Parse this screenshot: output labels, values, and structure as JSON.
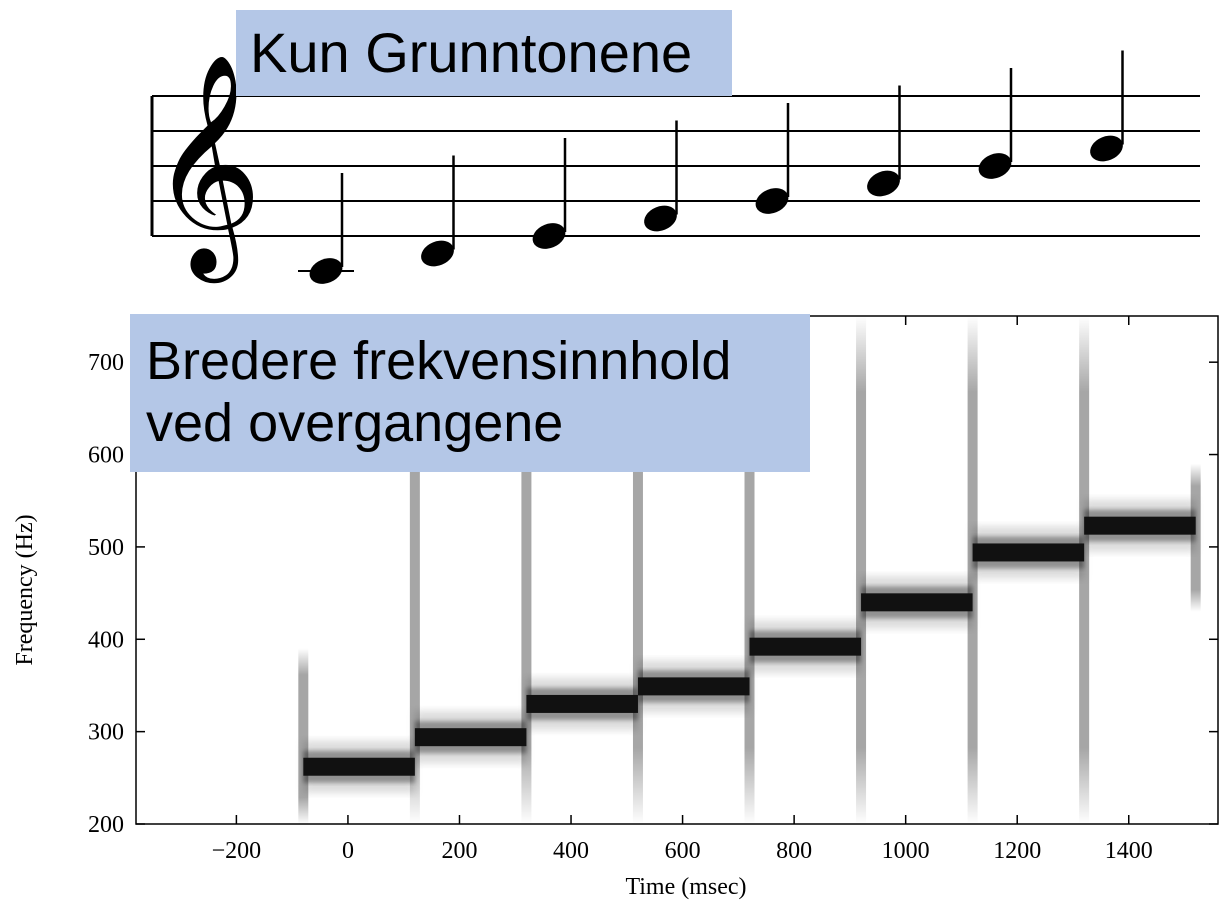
{
  "staff": {
    "label": "Kun Grunntonene",
    "clef_glyph": "𝄞",
    "notes": [
      "C4",
      "D4",
      "E4",
      "F4",
      "G4",
      "A4",
      "B4",
      "C5"
    ]
  },
  "annotation": {
    "line1": "Bredere frekvensinnhold",
    "line2": "ved overgangene"
  },
  "chart_data": {
    "type": "heatmap",
    "subtype": "spectrogram",
    "title": "",
    "xlabel": "Time (msec)",
    "ylabel": "Frequency  (Hz)",
    "xlim": [
      -380,
      1560
    ],
    "ylim": [
      200,
      750
    ],
    "xticks": [
      -200,
      0,
      200,
      400,
      600,
      800,
      1000,
      1200,
      1400
    ],
    "yticks": [
      200,
      300,
      400,
      500,
      600,
      700
    ],
    "xtick_labels": [
      "−200",
      "0",
      "200",
      "400",
      "600",
      "800",
      "1000",
      "1200",
      "1400"
    ],
    "ytick_labels": [
      "200",
      "300",
      "400",
      "500",
      "600",
      "700"
    ],
    "tones": [
      {
        "start": -80,
        "end": 120,
        "freq": 262
      },
      {
        "start": 120,
        "end": 320,
        "freq": 294
      },
      {
        "start": 320,
        "end": 520,
        "freq": 330
      },
      {
        "start": 520,
        "end": 720,
        "freq": 349
      },
      {
        "start": 720,
        "end": 920,
        "freq": 392
      },
      {
        "start": 920,
        "end": 1120,
        "freq": 440
      },
      {
        "start": 1120,
        "end": 1320,
        "freq": 494
      },
      {
        "start": 1320,
        "end": 1520,
        "freq": 523
      }
    ],
    "transitions": [
      -80,
      120,
      320,
      520,
      720,
      920,
      1120,
      1320,
      1520
    ],
    "colors": {
      "tone": "#111111",
      "halo": "#9a9a9a",
      "box": "#b4c7e7"
    },
    "grid": false
  }
}
